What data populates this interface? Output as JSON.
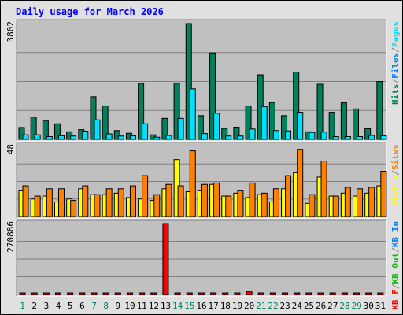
{
  "colors": {
    "background": "#e0e0e0",
    "plot_bg": "#c0c0c0",
    "grid": "#808080",
    "title": "#0000ff",
    "hits": "#00805c",
    "files": "#0080ff",
    "pages": "#00e0ff",
    "visits": "#ffff00",
    "sites": "#ff8000",
    "kb_in": "#0080ff",
    "kb_out": "#00c000",
    "kb_f": "#ff0000",
    "kb_bar": "#ff0000",
    "weekend_day": "#00805c",
    "weekday_day": "#000000"
  },
  "chart_data": {
    "type": "bar",
    "title": "Daily usage for March 2026",
    "categories": [
      "1",
      "2",
      "3",
      "4",
      "5",
      "6",
      "7",
      "8",
      "9",
      "10",
      "11",
      "12",
      "13",
      "14",
      "15",
      "16",
      "17",
      "18",
      "19",
      "20",
      "21",
      "22",
      "23",
      "24",
      "25",
      "26",
      "27",
      "28",
      "29",
      "30",
      "31"
    ],
    "weekend_days": [
      "1",
      "7",
      "8",
      "14",
      "15",
      "21",
      "22",
      "28",
      "29"
    ],
    "panels": [
      {
        "name": "hits_files_pages",
        "ymax_label": "3802",
        "ylim": [
          0,
          3802
        ],
        "legend": [
          {
            "text": "Hits",
            "color_key": "hits"
          },
          {
            "text": "/",
            "color_key": "grid"
          },
          {
            "text": "Files",
            "color_key": "files"
          },
          {
            "text": "/",
            "color_key": "grid"
          },
          {
            "text": "Pages",
            "color_key": "pages"
          }
        ],
        "series": [
          {
            "name": "Hits",
            "color_key": "hits",
            "values": [
              390,
              730,
              620,
              510,
              250,
              320,
              1400,
              1100,
              290,
              200,
              1840,
              150,
              690,
              1840,
              3802,
              780,
              2840,
              360,
              400,
              1100,
              2120,
              1210,
              780,
              2210,
              250,
              1810,
              890,
              1200,
              1000,
              350,
              1900
            ]
          },
          {
            "name": "Files",
            "color_key": "files",
            "values": [
              0,
              0,
              0,
              0,
              0,
              0,
              0,
              0,
              0,
              0,
              0,
              0,
              0,
              0,
              0,
              0,
              0,
              0,
              0,
              0,
              0,
              0,
              0,
              0,
              0,
              0,
              0,
              0,
              0,
              0,
              0
            ]
          },
          {
            "name": "Pages",
            "color_key": "pages",
            "values": [
              150,
              150,
              90,
              120,
              110,
              270,
              640,
              180,
              110,
              120,
              510,
              70,
              130,
              690,
              1660,
              190,
              860,
              110,
              110,
              340,
              1080,
              290,
              280,
              890,
              230,
              240,
              90,
              90,
              90,
              130,
              120
            ]
          }
        ]
      },
      {
        "name": "visits_sites",
        "ymax_label": "48",
        "ylim": [
          0,
          48
        ],
        "legend": [
          {
            "text": "Visits",
            "color_key": "visits"
          },
          {
            "text": "/",
            "color_key": "grid"
          },
          {
            "text": "Sites",
            "color_key": "sites"
          }
        ],
        "series": [
          {
            "name": "Visits",
            "color_key": "visits",
            "values": [
              18,
              12,
              14,
              10,
              12,
              19,
              15,
              15,
              16,
              13,
              12,
              11,
              19,
              39,
              17,
              18,
              22,
              14,
              16,
              13,
              15,
              10,
              19,
              30,
              9,
              27,
              14,
              16,
              14,
              16,
              21
            ]
          },
          {
            "name": "Sites",
            "color_key": "sites",
            "values": [
              21,
              14,
              19,
              19,
              11,
              21,
              15,
              19,
              19,
              21,
              28,
              15,
              22,
              21,
              45,
              22,
              23,
              14,
              18,
              23,
              16,
              19,
              28,
              46,
              15,
              38,
              14,
              20,
              19,
              20,
              31
            ]
          }
        ]
      },
      {
        "name": "kbytes",
        "ymax_label": "270886",
        "ylim": [
          0,
          270886
        ],
        "legend": [
          {
            "text": "KB F",
            "color_key": "kb_f"
          },
          {
            "text": "/",
            "color_key": "grid"
          },
          {
            "text": "KB Out",
            "color_key": "kb_out"
          },
          {
            "text": "/",
            "color_key": "grid"
          },
          {
            "text": "KB In",
            "color_key": "kb_in"
          }
        ],
        "series": [
          {
            "name": "KB F",
            "color_key": "kb_bar",
            "values": [
              6000,
              6000,
              6000,
              6000,
              6000,
              6000,
              6000,
              6000,
              6000,
              6000,
              6000,
              6000,
              270886,
              6000,
              6000,
              6000,
              6000,
              6000,
              6000,
              12000,
              6000,
              6000,
              6000,
              6000,
              6000,
              6000,
              6000,
              6000,
              6000,
              6000,
              6000
            ]
          }
        ]
      }
    ]
  }
}
